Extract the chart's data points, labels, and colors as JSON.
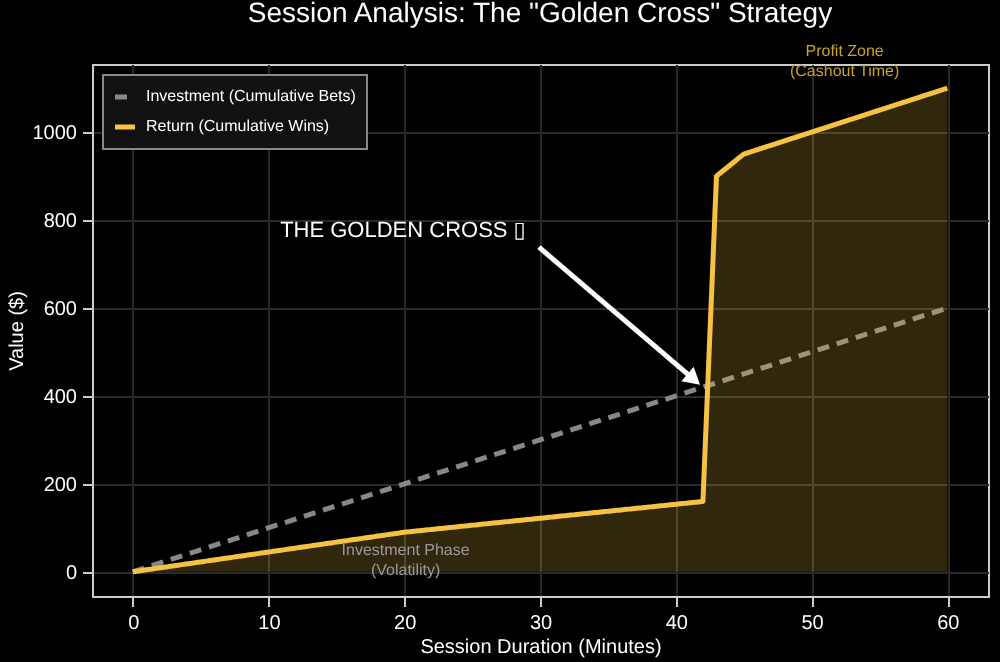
{
  "chart_data": {
    "type": "line",
    "title": "Session Analysis: The \"Golden Cross\" Strategy",
    "xlabel": "Session Duration (Minutes)",
    "ylabel": "Value ($)",
    "series": [
      {
        "name": "Investment (Cumulative Bets)",
        "color": "#888888",
        "line_style": "dashed",
        "x": [
          0,
          60
        ],
        "values": [
          0,
          600
        ]
      },
      {
        "name": "Return (Cumulative Wins)",
        "type": "area",
        "color": "#f5c242",
        "line_style": "solid",
        "x": [
          0,
          20,
          42,
          43,
          45,
          60
        ],
        "values": [
          0,
          90,
          160,
          900,
          950,
          1100
        ]
      }
    ],
    "annotations": [
      {
        "text": "THE GOLDEN CROSS ▯",
        "x": 42,
        "y": 420
      },
      "Investment Phase\n(Volatility)",
      "Profit Zone\n(Cashout Time)"
    ],
    "xlim": [
      -3,
      63
    ],
    "ylim": [
      -55,
      1155
    ],
    "xticks": [
      0,
      10,
      20,
      30,
      40,
      50,
      60
    ],
    "yticks": [
      0,
      200,
      400,
      600,
      800,
      1000
    ],
    "grid": true,
    "legend": "top left",
    "marker": "none"
  }
}
